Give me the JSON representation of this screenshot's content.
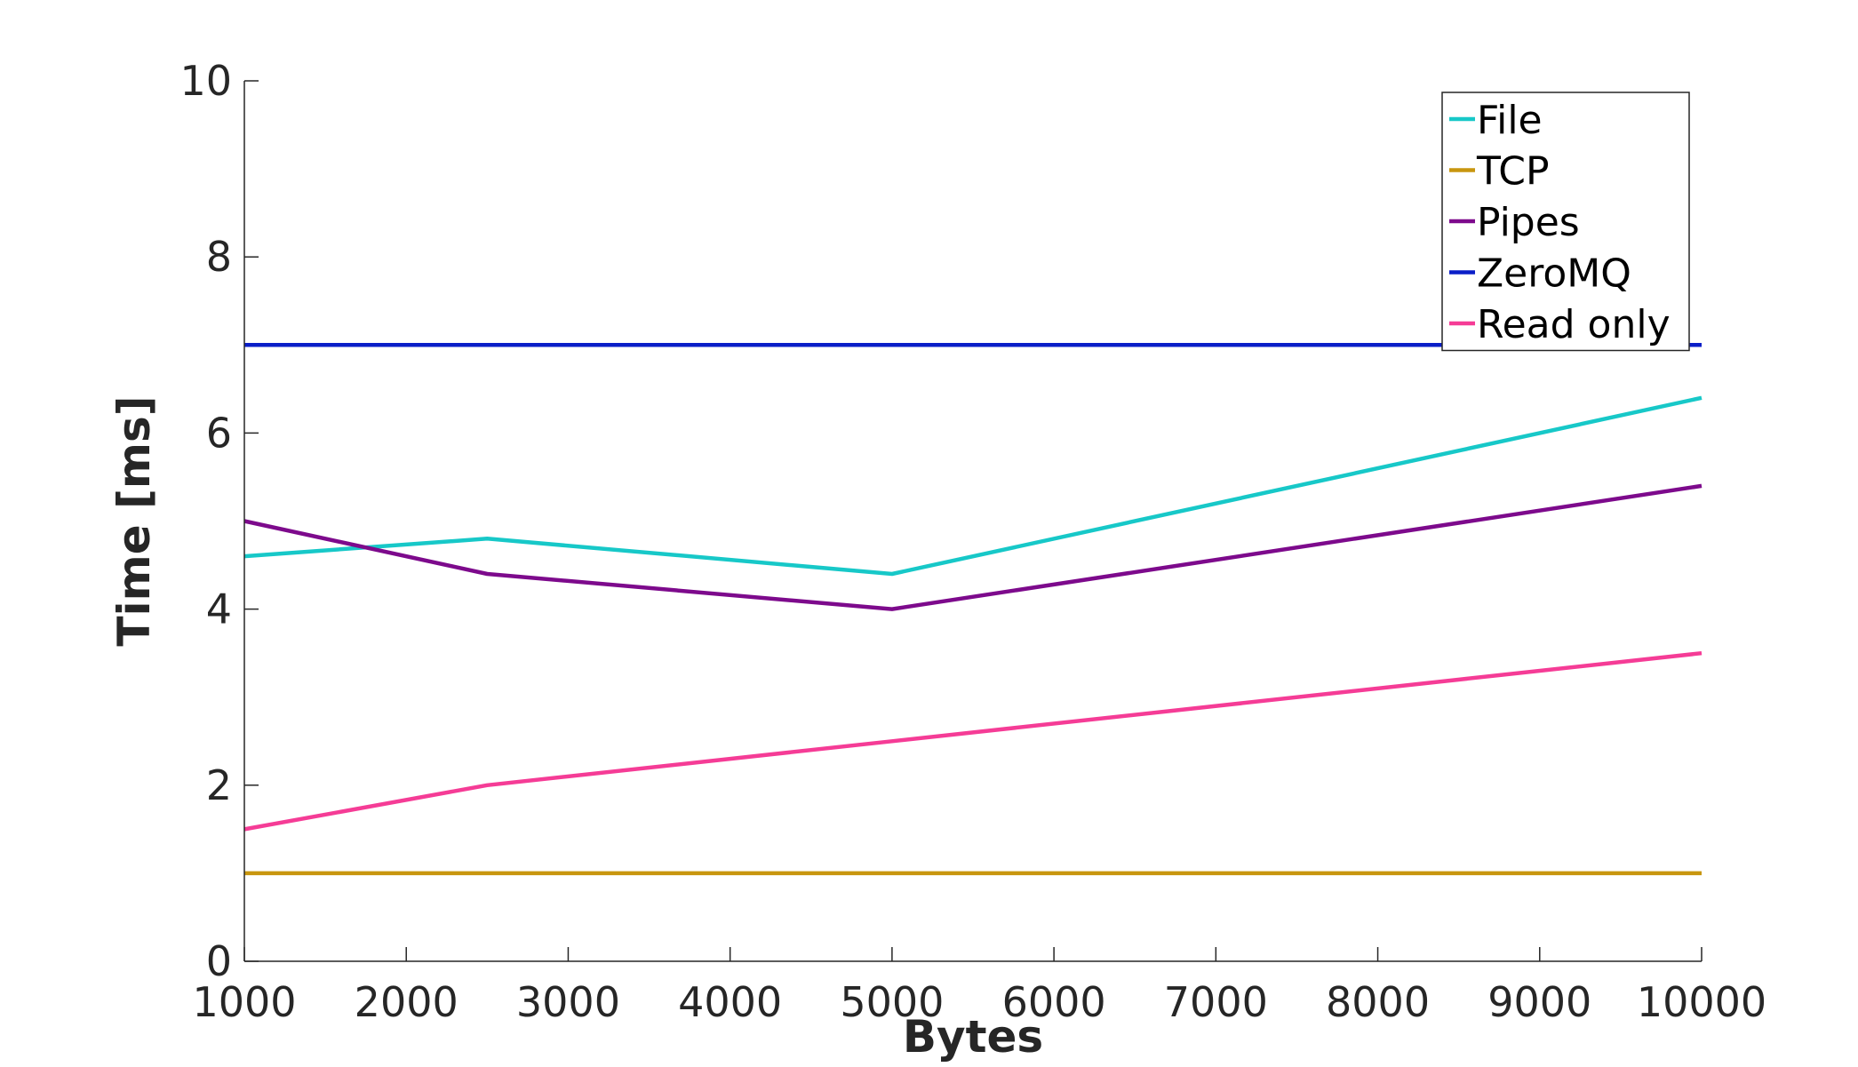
{
  "chart_data": {
    "type": "line",
    "title": "",
    "xlabel": "Bytes",
    "ylabel": "Time [ms]",
    "xlim": [
      1000,
      10000
    ],
    "ylim": [
      0,
      10
    ],
    "x_ticks": [
      1000,
      2000,
      3000,
      4000,
      5000,
      6000,
      7000,
      8000,
      9000,
      10000
    ],
    "y_ticks": [
      0,
      2,
      4,
      6,
      8,
      10
    ],
    "grid": false,
    "legend_position": "top-right",
    "series": [
      {
        "name": "File",
        "color": "#17c8c8",
        "x": [
          1000,
          2500,
          5000,
          10000
        ],
        "y": [
          4.6,
          4.8,
          4.4,
          6.4
        ]
      },
      {
        "name": "TCP",
        "color": "#c8960f",
        "x": [
          1000,
          2500,
          5000,
          10000
        ],
        "y": [
          1.0,
          1.0,
          1.0,
          1.0
        ]
      },
      {
        "name": "Pipes",
        "color": "#7d0a8c",
        "x": [
          1000,
          2500,
          5000,
          10000
        ],
        "y": [
          5.0,
          4.4,
          4.0,
          5.4
        ]
      },
      {
        "name": "ZeroMQ",
        "color": "#0a1ec8",
        "x": [
          1000,
          2500,
          5000,
          10000
        ],
        "y": [
          7.0,
          7.0,
          7.0,
          7.0
        ]
      },
      {
        "name": "Read only",
        "color": "#f53c96",
        "x": [
          1000,
          2500,
          5000,
          10000
        ],
        "y": [
          1.5,
          2.0,
          2.5,
          3.5
        ]
      }
    ]
  }
}
